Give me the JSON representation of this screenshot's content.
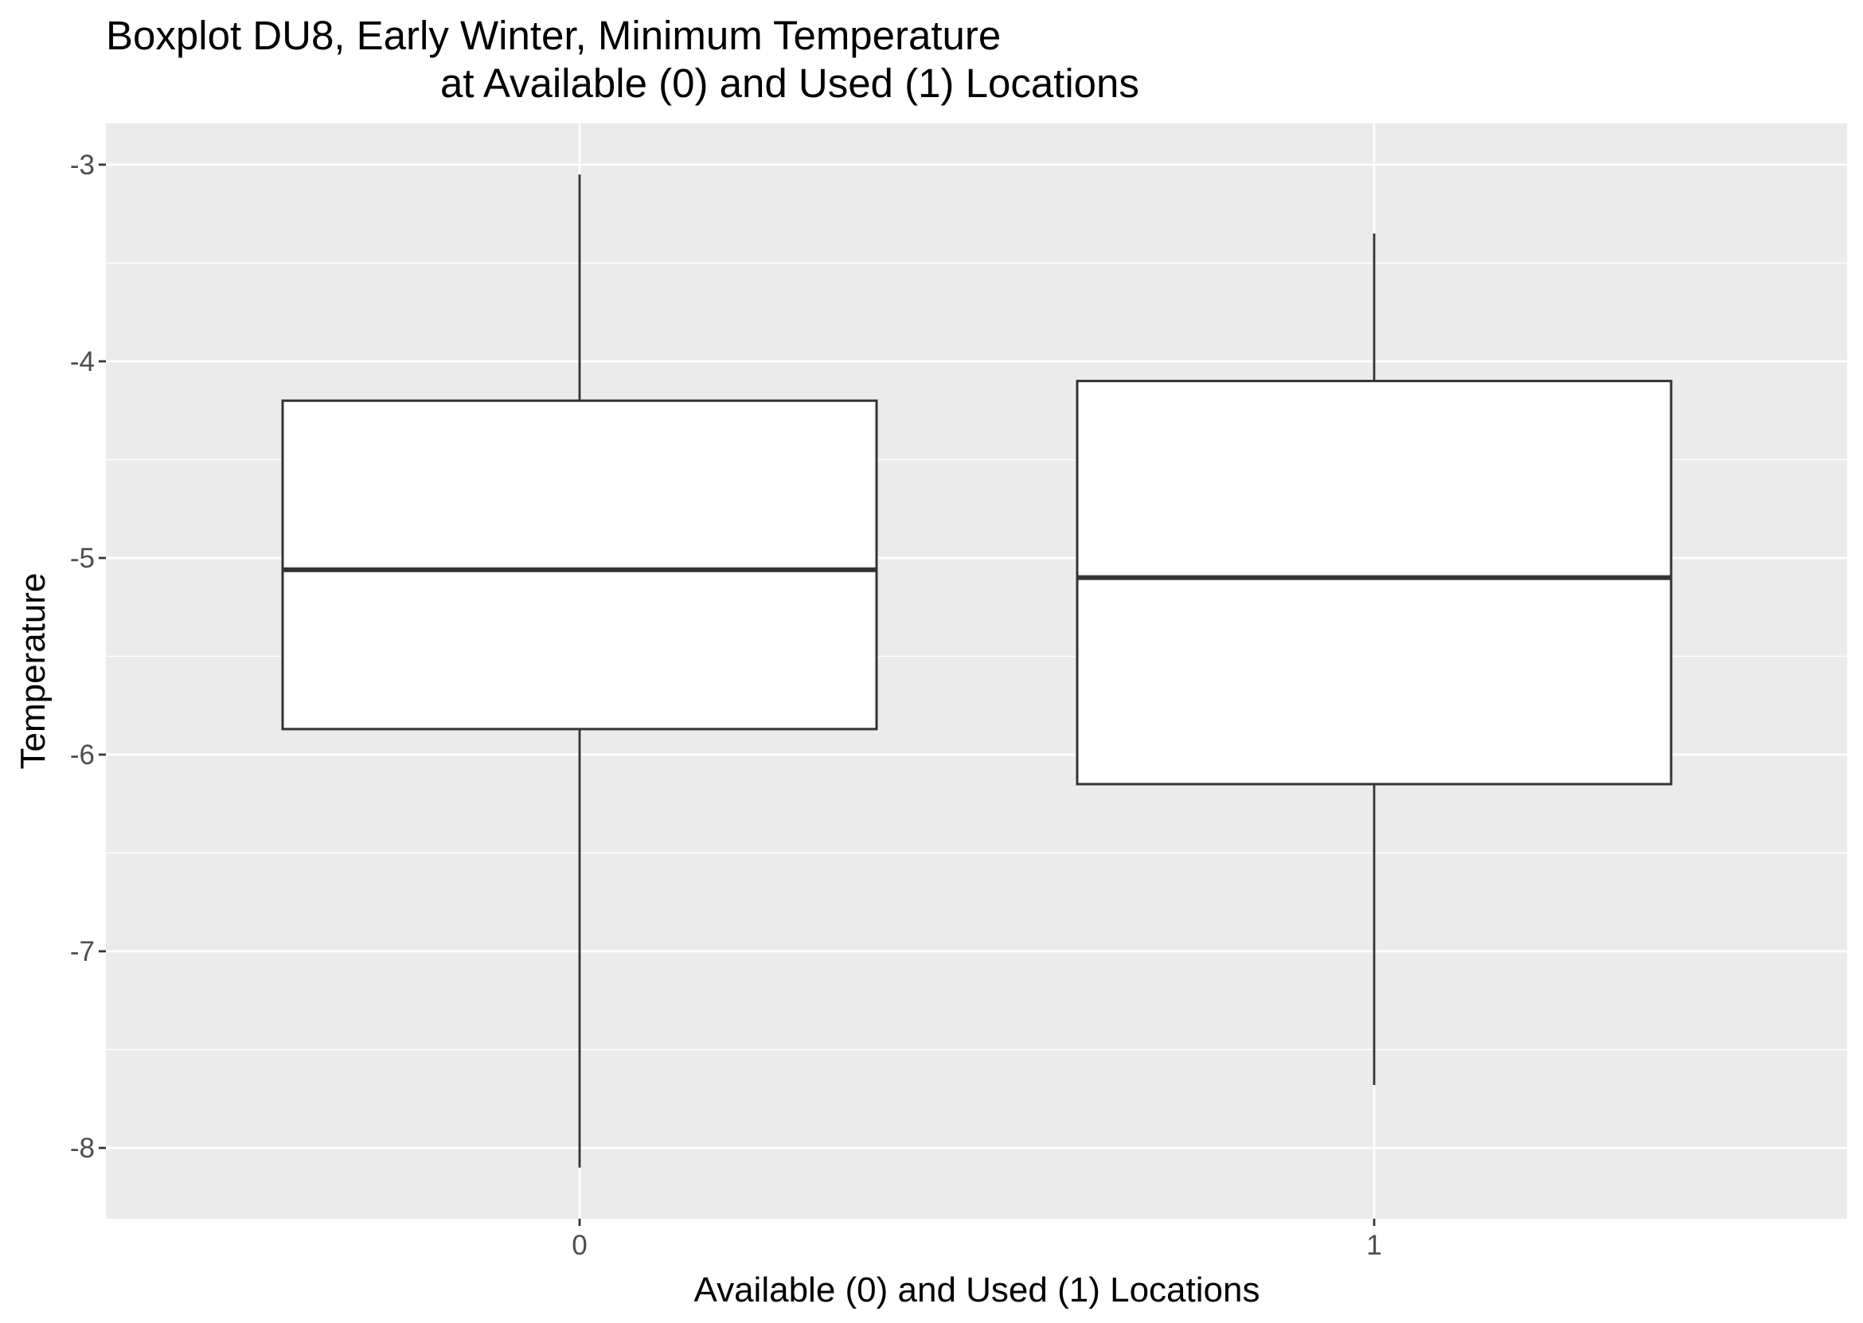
{
  "chart_data": {
    "type": "boxplot",
    "title_lines": [
      "Boxplot DU8, Early Winter, Minimum Temperature",
      "at Available (0) and Used (1) Locations"
    ],
    "xlabel": "Available (0) and Used (1) Locations",
    "ylabel": "Temperature",
    "categories": [
      "0",
      "1"
    ],
    "y_ticks": [
      -3,
      -4,
      -5,
      -6,
      -7,
      -8
    ],
    "y_tick_labels": [
      "-3",
      "-4",
      "-5",
      "-6",
      "-7",
      "-8"
    ],
    "ylim": [
      -8.36,
      -2.79
    ],
    "grid": true,
    "boxes": [
      {
        "category": "0",
        "whisker_low": -8.1,
        "q1": -5.87,
        "median": -5.06,
        "q3": -4.2,
        "whisker_high": -3.05
      },
      {
        "category": "1",
        "whisker_low": -7.68,
        "q1": -6.15,
        "median": -5.1,
        "q3": -4.1,
        "whisker_high": -3.35
      }
    ],
    "colors": {
      "panel_background": "#ebebeb",
      "grid": "#ffffff",
      "box_fill": "#ffffff",
      "box_stroke": "#333333"
    }
  }
}
